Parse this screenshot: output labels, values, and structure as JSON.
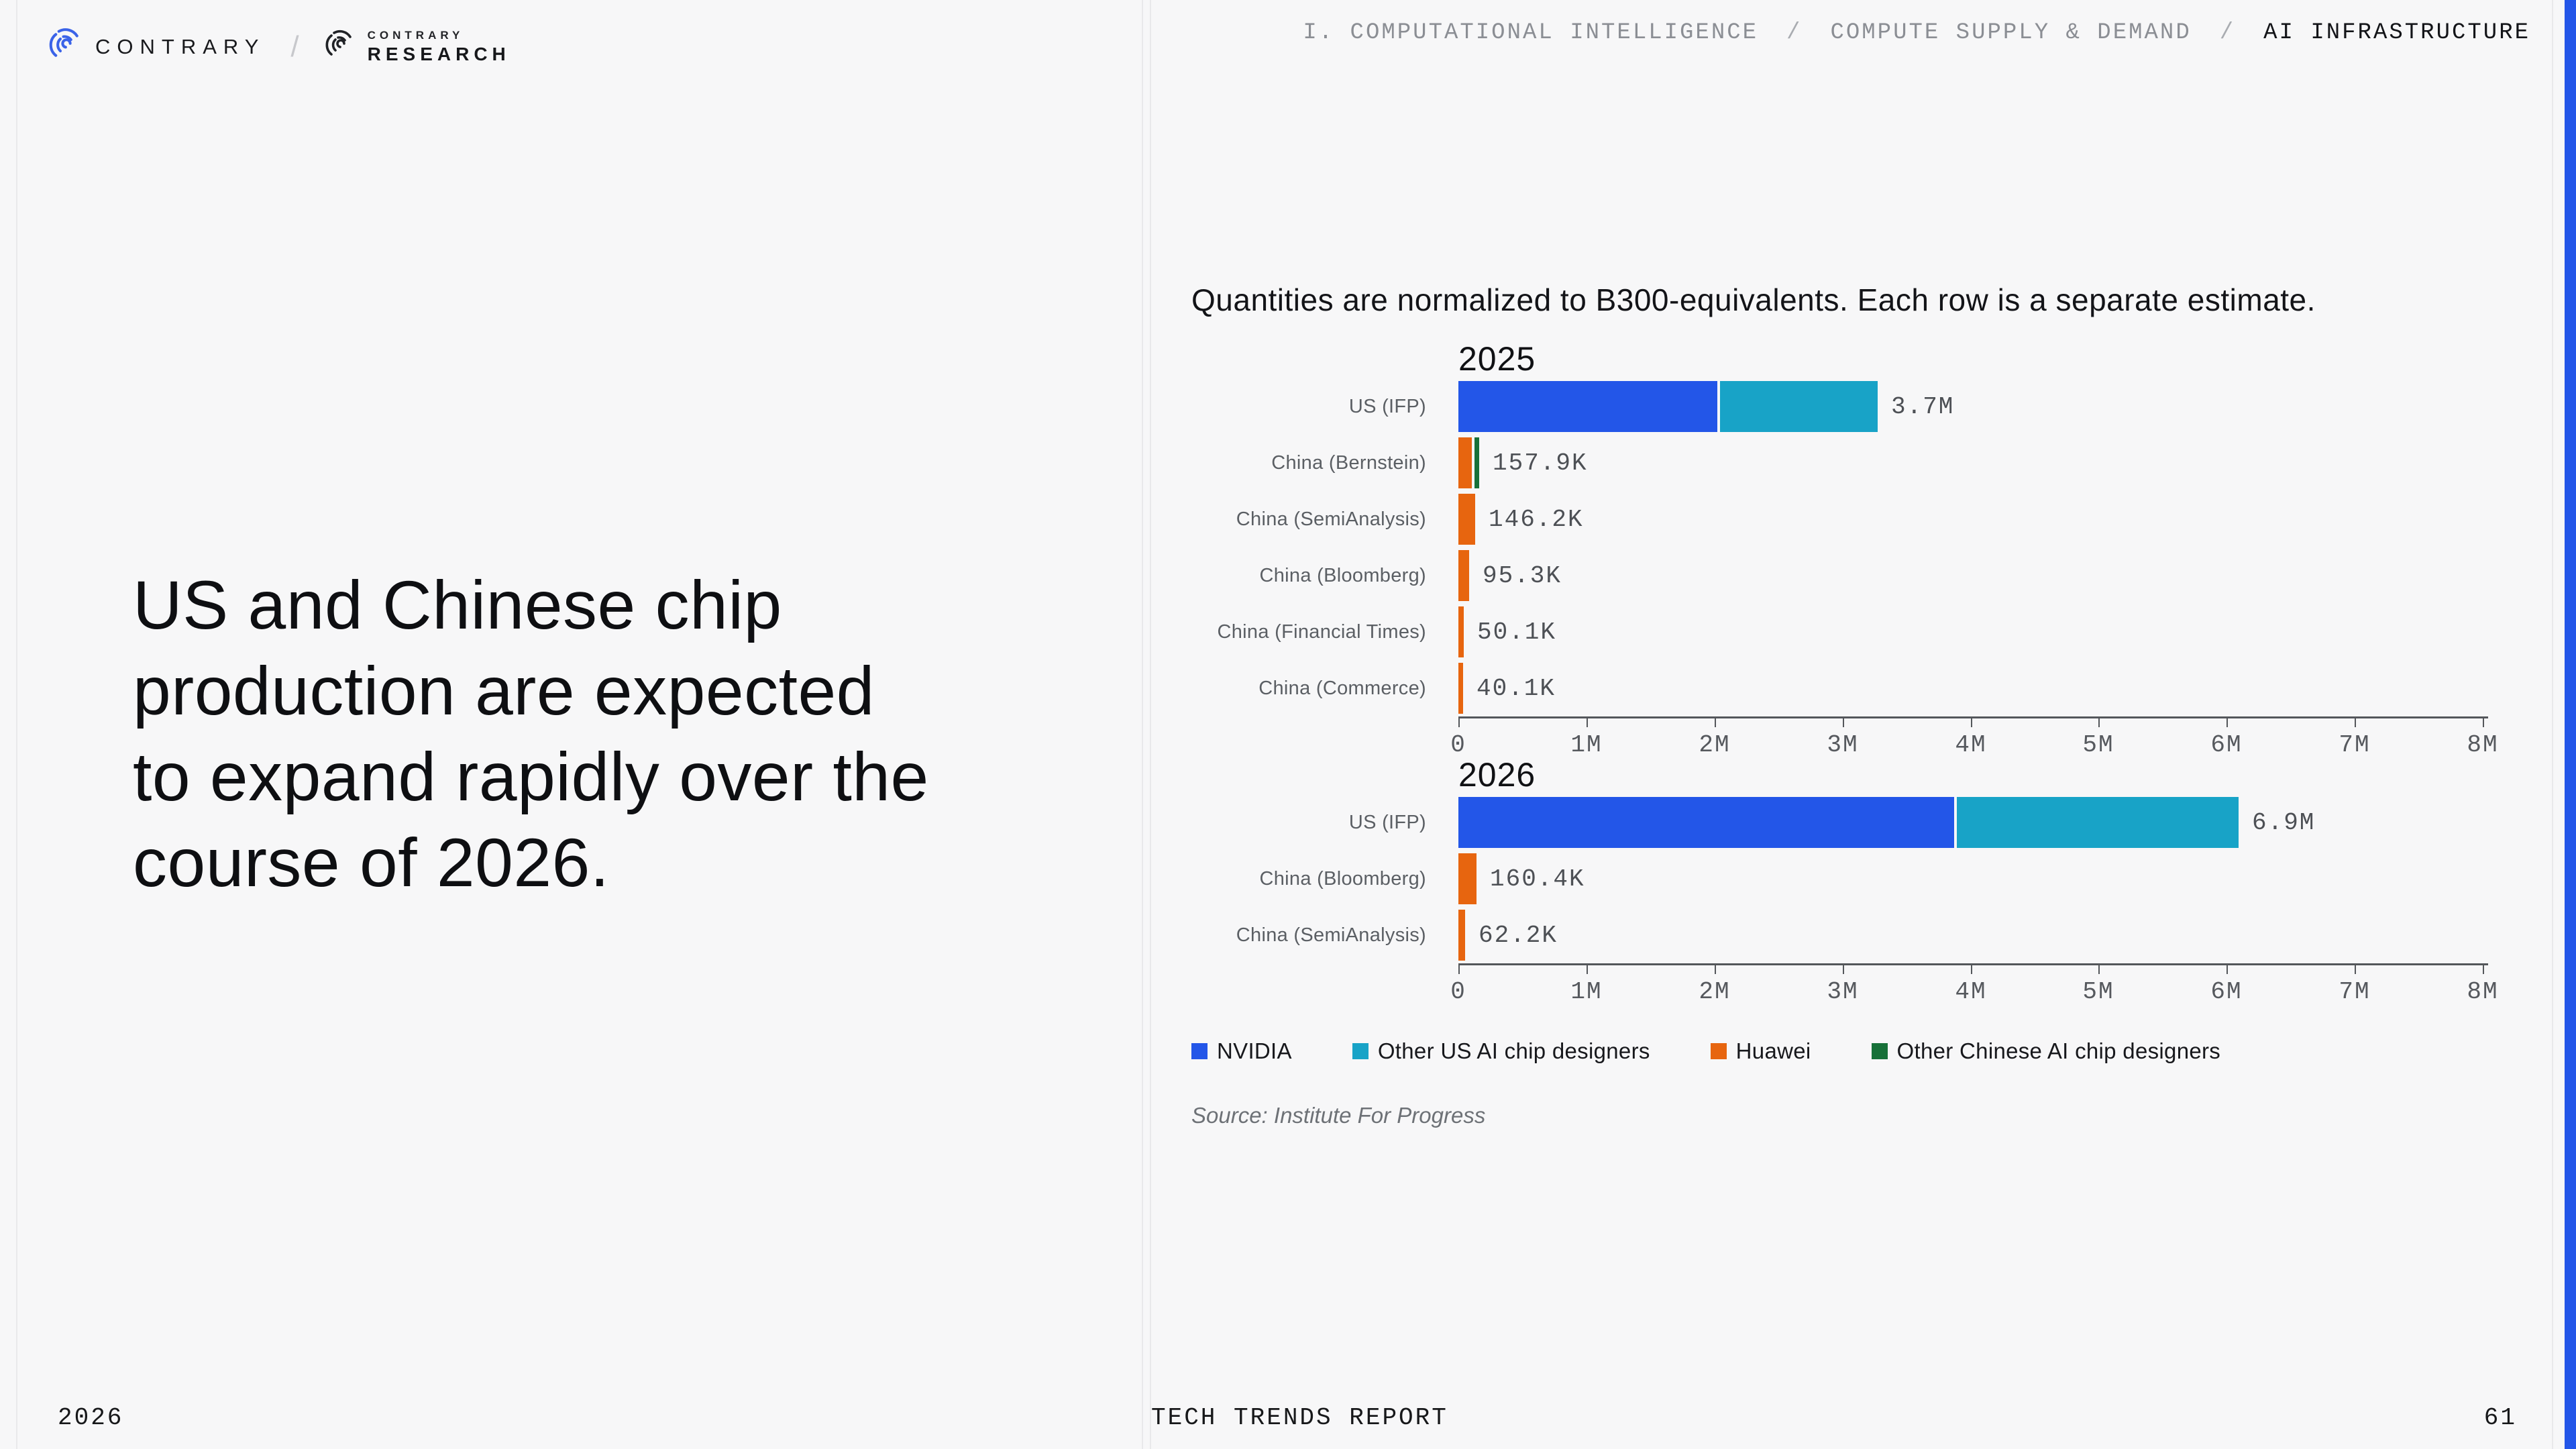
{
  "logo": {
    "brand": "CONTRARY",
    "separator": "/",
    "research_top": "CONTRARY",
    "research_bottom": "RESEARCH"
  },
  "breadcrumb": {
    "separator": "/",
    "items": [
      {
        "label": "I. COMPUTATIONAL INTELLIGENCE",
        "active": false
      },
      {
        "label": "COMPUTE SUPPLY & DEMAND",
        "active": false
      },
      {
        "label": "AI INFRASTRUCTURE",
        "active": true
      }
    ]
  },
  "headline": {
    "lines": [
      "US and Chinese chip",
      "production are expected",
      "to expand rapidly over the",
      "course of 2026."
    ]
  },
  "footers": {
    "left_year": "2026",
    "report_name": "TECH TRENDS REPORT",
    "page_number": "61"
  },
  "colors": {
    "nvidia_blue": "#2356e8",
    "other_us_teal": "#18a3c7",
    "huawei_orange": "#e7650f",
    "other_chinese_green": "#177139",
    "edge_accent": "#2356e8"
  },
  "chart_data": {
    "type": "bar",
    "orientation": "horizontal",
    "title": "Quantities are normalized to B300-equivalents. Each row is a separate estimate.",
    "x_ticks": [
      "0",
      "1M",
      "2M",
      "3M",
      "4M",
      "5M",
      "6M",
      "7M",
      "8M"
    ],
    "x_max": 8000000,
    "grid": false,
    "legend_position": "bottom",
    "legend": [
      {
        "name": "NVIDIA",
        "color": "#2356e8"
      },
      {
        "name": "Other US AI chip designers",
        "color": "#18a3c7"
      },
      {
        "name": "Huawei",
        "color": "#e7650f"
      },
      {
        "name": "Other Chinese AI chip designers",
        "color": "#177139"
      }
    ],
    "groups": [
      {
        "year": "2025",
        "rows": [
          {
            "label": "US (IFP)",
            "total_label": "3.7M",
            "segments": [
              {
                "series": "NVIDIA",
                "value": 2300000
              },
              {
                "series": "Other US AI chip designers",
                "value": 1400000
              }
            ]
          },
          {
            "label": "China (Bernstein)",
            "total_label": "157.9K",
            "segments": [
              {
                "series": "Huawei",
                "value": 119000
              },
              {
                "series": "Other Chinese AI chip designers",
                "value": 38900
              }
            ]
          },
          {
            "label": "China (SemiAnalysis)",
            "total_label": "146.2K",
            "segments": [
              {
                "series": "Huawei",
                "value": 146200
              }
            ]
          },
          {
            "label": "China (Bloomberg)",
            "total_label": "95.3K",
            "segments": [
              {
                "series": "Huawei",
                "value": 95300
              }
            ]
          },
          {
            "label": "China (Financial Times)",
            "total_label": "50.1K",
            "segments": [
              {
                "series": "Huawei",
                "value": 50100
              }
            ]
          },
          {
            "label": "China (Commerce)",
            "total_label": "40.1K",
            "segments": [
              {
                "series": "Huawei",
                "value": 40100
              }
            ]
          }
        ]
      },
      {
        "year": "2026",
        "rows": [
          {
            "label": "US (IFP)",
            "total_label": "6.9M",
            "segments": [
              {
                "series": "NVIDIA",
                "value": 4400000
              },
              {
                "series": "Other US AI chip designers",
                "value": 2500000
              }
            ]
          },
          {
            "label": "China (Bloomberg)",
            "total_label": "160.4K",
            "segments": [
              {
                "series": "Huawei",
                "value": 160400
              }
            ]
          },
          {
            "label": "China (SemiAnalysis)",
            "total_label": "62.2K",
            "segments": [
              {
                "series": "Huawei",
                "value": 62200
              }
            ]
          }
        ]
      }
    ],
    "source": "Source: Institute For Progress"
  }
}
